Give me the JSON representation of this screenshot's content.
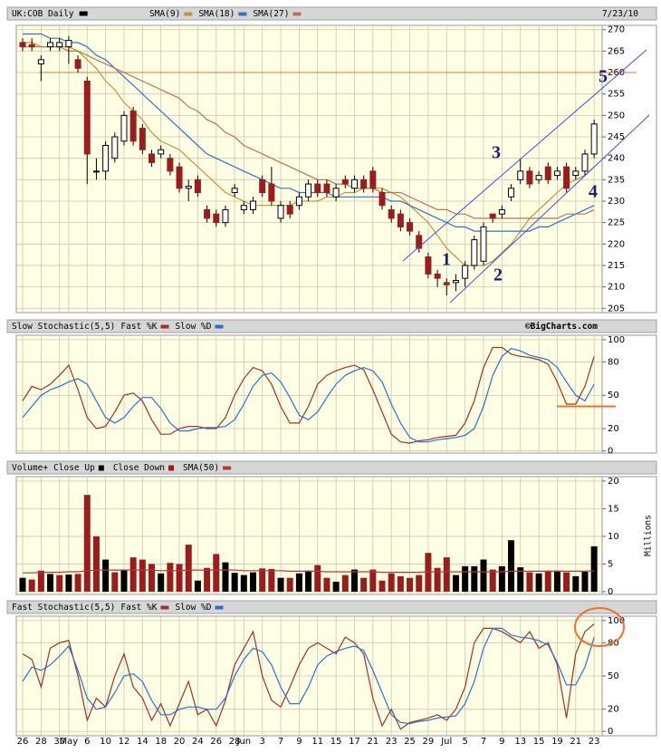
{
  "chart_data": [
    {
      "type": "candlestick",
      "title": "UK:COB Daily",
      "date": "7/23/10",
      "color": "#000000",
      "up_color": "#ffffff",
      "down_color": "#9b1c1c",
      "categories": [
        "26",
        null,
        "28",
        null,
        "30",
        "May",
        null,
        "6",
        null,
        "10",
        null,
        "12",
        null,
        "14",
        null,
        "18",
        null,
        "20",
        null,
        "24",
        null,
        "26",
        null,
        "28",
        "Jun",
        null,
        "3",
        null,
        "7",
        null,
        "9",
        null,
        "11",
        null,
        "15",
        null,
        "17",
        null,
        "21",
        null,
        "23",
        null,
        "25",
        null,
        "29",
        null,
        "Jul",
        null,
        "5",
        null,
        "7",
        null,
        "9",
        null,
        "13",
        null,
        "15",
        null,
        "19",
        null,
        "21",
        null,
        "23"
      ],
      "open": [
        267,
        266.5,
        262,
        266,
        266,
        266,
        263,
        258,
        237,
        237,
        240,
        244,
        251,
        247,
        241,
        241,
        240,
        238,
        233,
        235,
        228,
        227,
        225,
        232,
        228,
        228,
        235,
        234,
        226,
        229,
        229,
        231,
        234,
        234,
        231,
        235,
        233,
        235,
        237,
        232,
        228,
        227,
        225,
        222,
        217,
        213,
        211,
        211,
        212,
        215,
        216,
        227,
        227,
        231,
        235,
        237,
        235,
        238,
        236,
        238,
        236,
        237,
        241
      ],
      "high": [
        268,
        268,
        264,
        268,
        268,
        268.5,
        264,
        259,
        240,
        244,
        246,
        251,
        252,
        248,
        242,
        243,
        241,
        239,
        235,
        236,
        229,
        228,
        229,
        234,
        230,
        231,
        236,
        238,
        230,
        230,
        232,
        235,
        235,
        235,
        234,
        236,
        236,
        236,
        238,
        233,
        229,
        228,
        226,
        223,
        218,
        214,
        212,
        213,
        216,
        222,
        225,
        227,
        229,
        234,
        240,
        238,
        237,
        239,
        238,
        239,
        238,
        242,
        249
      ],
      "low": [
        265,
        265,
        258,
        265,
        265,
        262,
        260,
        234,
        235,
        235,
        239,
        243,
        243,
        241,
        238,
        240,
        236,
        232,
        230,
        231,
        225,
        224,
        224,
        231,
        227,
        227,
        231,
        229,
        225,
        226,
        228,
        230,
        231,
        231,
        230,
        233,
        232,
        232,
        232,
        228,
        225,
        223,
        222,
        218,
        212,
        210,
        208,
        209,
        210,
        214,
        215,
        225,
        226,
        230,
        234,
        233,
        234,
        234,
        235,
        232,
        235,
        236,
        240
      ],
      "close": [
        266,
        266,
        263,
        267,
        267,
        267.5,
        261,
        241,
        237,
        243,
        245,
        250,
        244,
        242,
        239,
        242,
        237,
        233,
        233.5,
        232,
        226,
        225,
        228,
        233,
        229,
        230,
        232,
        230,
        229,
        227,
        231,
        234,
        232,
        232,
        233,
        234,
        235,
        233,
        233,
        229,
        226,
        224,
        223,
        219,
        213,
        212,
        210.5,
        211.5,
        215,
        221,
        224,
        226,
        228,
        233,
        237,
        234,
        236,
        235,
        237,
        233,
        237,
        241,
        248
      ],
      "series": [
        {
          "name": "SMA(9)",
          "color": "#c8903c",
          "values": [
            267,
            267,
            266,
            266,
            266,
            266,
            265,
            263,
            261,
            258,
            256,
            253,
            251,
            249,
            246,
            244,
            243,
            242,
            240,
            238,
            236,
            234,
            232,
            231,
            230,
            229,
            229,
            229,
            229,
            229,
            230,
            230,
            230,
            231,
            231,
            232,
            232,
            233,
            233,
            233,
            232,
            231,
            229,
            227,
            225,
            222,
            219,
            217,
            215,
            215,
            215,
            216,
            218,
            220,
            223,
            226,
            228,
            230,
            232,
            234,
            235,
            236,
            238
          ]
        },
        {
          "name": "SMA(18)",
          "color": "#2f73c8",
          "values": [
            269,
            269,
            269,
            268,
            268,
            267,
            267,
            266,
            264,
            263,
            261,
            259,
            257,
            255,
            253,
            251,
            249,
            247,
            245,
            243,
            241,
            240,
            239,
            238,
            237,
            236,
            235,
            234,
            233,
            233,
            232,
            232,
            232,
            232,
            231,
            231,
            231,
            231,
            231,
            231,
            230,
            230,
            229,
            228,
            227,
            226,
            225,
            224,
            224,
            223,
            223,
            223,
            223,
            223,
            223,
            223,
            224,
            224,
            225,
            226,
            227,
            228,
            229
          ]
        },
        {
          "name": "SMA(27)",
          "color": "#c0705a",
          "values": [
            266,
            266,
            266,
            266,
            266,
            265,
            265,
            264,
            263,
            262,
            261,
            260,
            259,
            258,
            257,
            256,
            255,
            254,
            252,
            251,
            249,
            248,
            246,
            245,
            243,
            242,
            241,
            240,
            239,
            238,
            237,
            236,
            235,
            235,
            234,
            234,
            233,
            233,
            233,
            232,
            232,
            232,
            231,
            230,
            229,
            228,
            228,
            227,
            227,
            226,
            226,
            226,
            226,
            226,
            226,
            226,
            226,
            226,
            226,
            227,
            227,
            227,
            228
          ]
        }
      ],
      "hline": 260,
      "hline_color": "#e07a30",
      "annotations": [
        "1",
        "2",
        "3",
        "4",
        "5"
      ],
      "ylim": [
        204,
        271
      ],
      "yticks": [
        205,
        210,
        215,
        220,
        225,
        230,
        235,
        240,
        245,
        250,
        255,
        260,
        265,
        270
      ],
      "grid": true
    },
    {
      "type": "line",
      "title": "Slow Stochastic(5,5)",
      "credit": "©BigCharts.com",
      "series": [
        {
          "name": "Fast %K",
          "color": "#a0302c",
          "values": [
            45,
            58,
            55,
            60,
            68,
            77,
            55,
            30,
            20,
            22,
            35,
            50,
            52,
            45,
            28,
            15,
            15,
            20,
            22,
            22,
            20,
            20,
            30,
            50,
            65,
            75,
            72,
            60,
            40,
            25,
            25,
            40,
            60,
            68,
            72,
            75,
            77,
            73,
            55,
            35,
            15,
            8,
            7,
            9,
            10,
            12,
            13,
            14,
            25,
            45,
            75,
            93,
            93,
            87,
            85,
            84,
            82,
            78,
            62,
            42,
            42,
            58,
            85
          ]
        },
        {
          "name": "Slow %D",
          "color": "#2a70d0",
          "values": [
            30,
            40,
            50,
            55,
            58,
            62,
            65,
            60,
            45,
            30,
            25,
            30,
            40,
            48,
            48,
            38,
            25,
            18,
            18,
            20,
            21,
            21,
            22,
            28,
            42,
            58,
            68,
            70,
            62,
            48,
            32,
            28,
            35,
            48,
            60,
            68,
            72,
            75,
            72,
            62,
            42,
            25,
            12,
            8,
            8,
            10,
            11,
            12,
            14,
            20,
            40,
            68,
            85,
            92,
            90,
            86,
            84,
            82,
            75,
            62,
            50,
            45,
            60
          ]
        }
      ],
      "hline": 40,
      "hline_color": "#f07030",
      "ylim": [
        -2,
        104
      ],
      "yticks": [
        0,
        20,
        50,
        80,
        100
      ],
      "grid": true
    },
    {
      "type": "bar",
      "title": "Volume+",
      "y_label": "Millions",
      "series": [
        {
          "name": "Close Up",
          "color": "#000000",
          "values": [
            2.5,
            null,
            null,
            3.2,
            null,
            3.1,
            null,
            null,
            null,
            5.8,
            null,
            4.0,
            null,
            null,
            null,
            3.3,
            null,
            null,
            null,
            2.0,
            null,
            null,
            5.3,
            3.4,
            3.0,
            3.5,
            null,
            null,
            2.5,
            null,
            3.3,
            3.8,
            null,
            null,
            1.8,
            null,
            4.0,
            null,
            null,
            null,
            null,
            null,
            null,
            null,
            null,
            null,
            null,
            3.0,
            4.6,
            4.6,
            5.8,
            null,
            4.6,
            9.3,
            4.4,
            null,
            3.3,
            null,
            3.8,
            null,
            2.8,
            3.6,
            8.2
          ]
        },
        {
          "name": "Close Down",
          "color": "#9b1c1c",
          "values": [
            null,
            2.2,
            3.8,
            null,
            3.0,
            null,
            3.2,
            17.5,
            10,
            null,
            3.5,
            null,
            6.2,
            5.8,
            5.0,
            null,
            5.2,
            5.0,
            8.5,
            null,
            4.3,
            6.8,
            null,
            null,
            null,
            null,
            4.2,
            4.1,
            null,
            2.5,
            null,
            null,
            4.8,
            2.5,
            null,
            3.0,
            null,
            2.5,
            4.0,
            2.0,
            3.3,
            2.8,
            2.5,
            3.0,
            7.0,
            4.3,
            6.2,
            null,
            null,
            null,
            null,
            4.0,
            null,
            null,
            null,
            3.5,
            null,
            3.8,
            null,
            3.5,
            null,
            null,
            null
          ]
        },
        {
          "name": "SMA(50)",
          "color": "#b03a3a",
          "type": "line",
          "values": [
            3.4,
            3.4,
            3.5,
            3.5,
            3.5,
            3.6,
            3.6,
            3.8,
            3.9,
            3.9,
            3.9,
            3.9,
            3.9,
            3.9,
            3.9,
            3.8,
            3.8,
            3.8,
            3.9,
            3.9,
            3.9,
            3.9,
            3.9,
            3.9,
            3.8,
            3.8,
            3.8,
            3.8,
            3.8,
            3.7,
            3.7,
            3.7,
            3.7,
            3.6,
            3.6,
            3.6,
            3.6,
            3.6,
            3.6,
            3.5,
            3.5,
            3.5,
            3.5,
            3.5,
            3.6,
            3.6,
            3.6,
            3.6,
            3.6,
            3.6,
            3.6,
            3.6,
            3.6,
            3.7,
            3.7,
            3.7,
            3.7,
            3.7,
            3.7,
            3.7,
            3.7,
            3.7,
            3.8
          ]
        }
      ],
      "ylim": [
        -0.5,
        20.8
      ],
      "yticks": [
        0,
        5,
        10,
        15,
        20
      ],
      "grid": true
    },
    {
      "type": "line",
      "title": "Fast Stochastic(5,5)",
      "series": [
        {
          "name": "Fast %K",
          "color": "#a0302c",
          "values": [
            70,
            65,
            40,
            75,
            80,
            82,
            50,
            10,
            30,
            22,
            50,
            70,
            40,
            30,
            10,
            25,
            5,
            25,
            45,
            15,
            20,
            5,
            28,
            60,
            75,
            90,
            50,
            28,
            22,
            40,
            60,
            75,
            80,
            75,
            70,
            85,
            80,
            70,
            30,
            5,
            20,
            2,
            8,
            10,
            12,
            15,
            10,
            20,
            40,
            80,
            93,
            93,
            90,
            85,
            80,
            90,
            75,
            80,
            60,
            12,
            70,
            90,
            97
          ]
        },
        {
          "name": "Slow %D",
          "color": "#2a70d0",
          "values": [
            45,
            58,
            55,
            60,
            68,
            77,
            55,
            30,
            20,
            22,
            35,
            50,
            52,
            45,
            28,
            15,
            15,
            20,
            22,
            22,
            20,
            20,
            30,
            50,
            65,
            75,
            72,
            60,
            40,
            25,
            25,
            40,
            60,
            68,
            72,
            75,
            77,
            73,
            55,
            35,
            15,
            8,
            7,
            9,
            10,
            12,
            13,
            14,
            25,
            45,
            75,
            93,
            93,
            87,
            85,
            84,
            82,
            78,
            62,
            42,
            42,
            58,
            85
          ]
        }
      ],
      "ylim": [
        -4,
        104
      ],
      "yticks": [
        0,
        20,
        50,
        80,
        100
      ],
      "grid": true
    }
  ]
}
